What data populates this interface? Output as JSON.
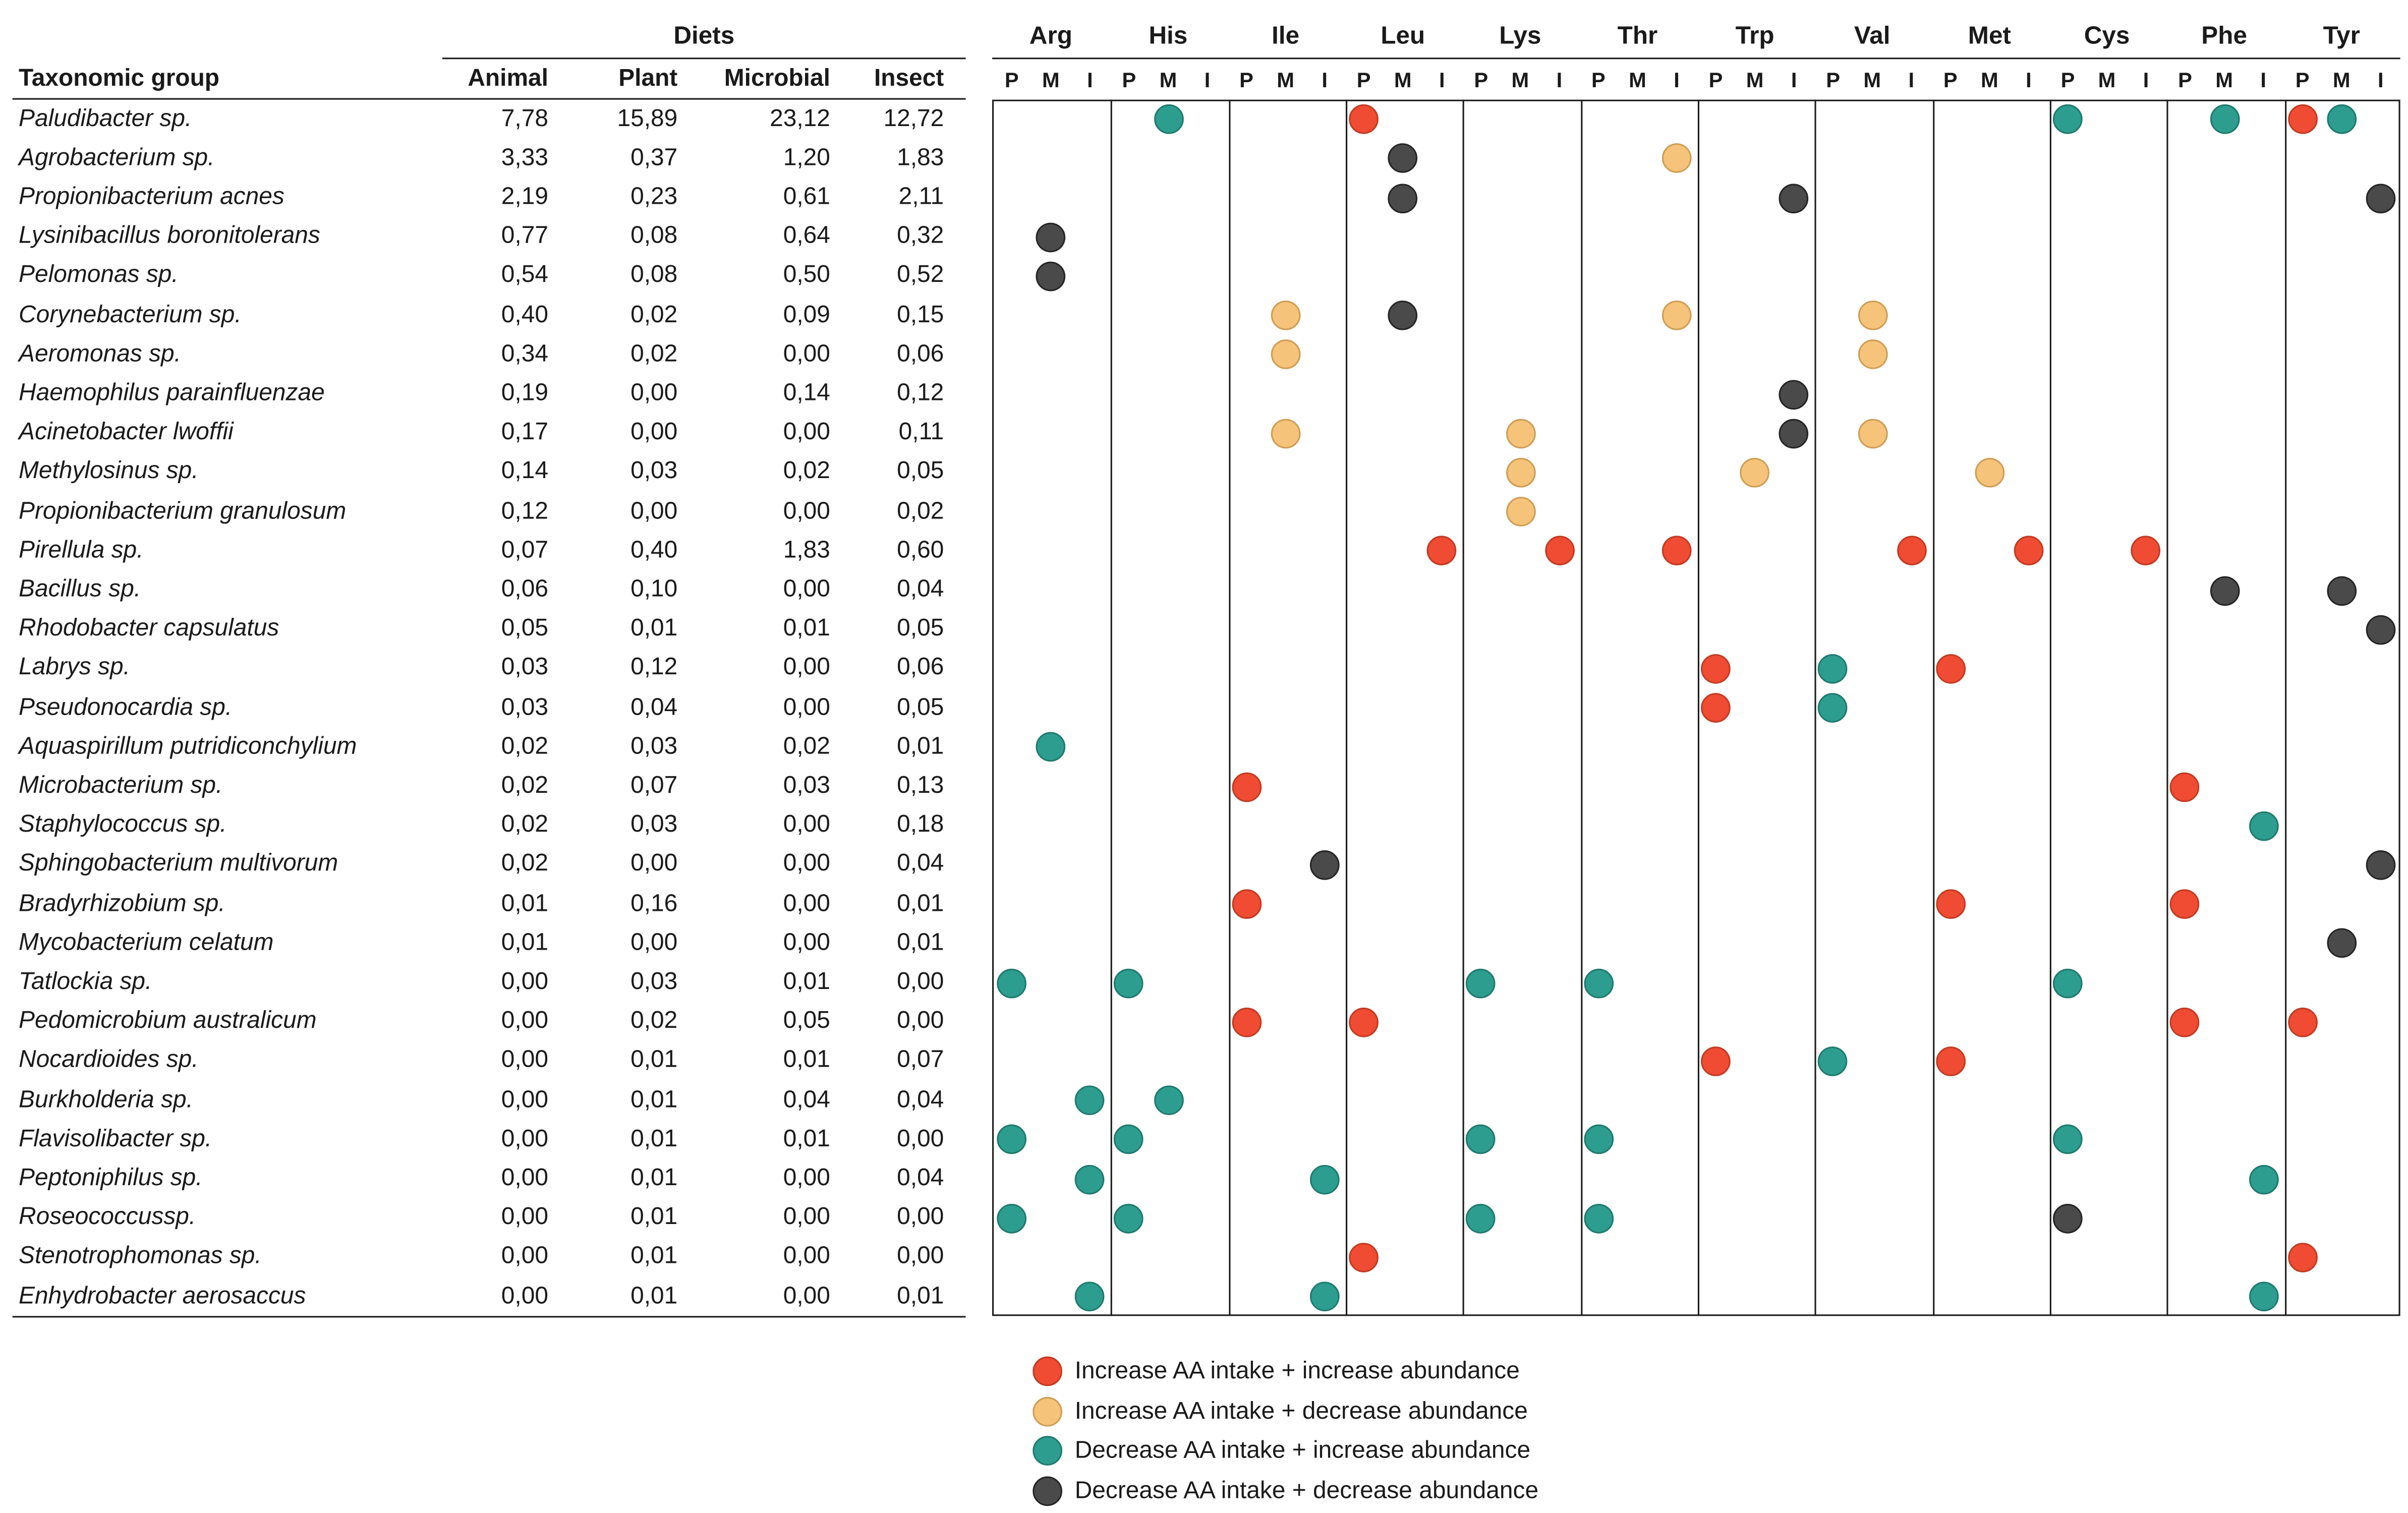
{
  "figure": {
    "legend": [
      {
        "key": "inc_inc",
        "label": "Increase AA intake + increase abundance",
        "color": "#F04C33",
        "border": "#C23A22"
      },
      {
        "key": "inc_dec",
        "label": "Increase AA intake + decrease abundance",
        "color": "#F6C37B",
        "border": "#CE9C52"
      },
      {
        "key": "dec_inc",
        "label": "Decrease AA intake + increase abundance",
        "color": "#2D9D8F",
        "border": "#1E7A6E"
      },
      {
        "key": "dec_dec",
        "label": "Decrease AA intake + decrease abundance",
        "color": "#4A4A4A",
        "border": "#252525"
      }
    ]
  },
  "chart_data": [
    {
      "type": "table",
      "title": "Diets",
      "columns": [
        "Taxonomic group",
        "Animal",
        "Plant",
        "Microbial",
        "Insect"
      ],
      "rows": [
        [
          "Paludibacter sp.",
          "7,78",
          "15,89",
          "23,12",
          "12,72"
        ],
        [
          "Agrobacterium sp.",
          "3,33",
          "0,37",
          "1,20",
          "1,83"
        ],
        [
          "Propionibacterium acnes",
          "2,19",
          "0,23",
          "0,61",
          "2,11"
        ],
        [
          "Lysinibacillus boronitolerans",
          "0,77",
          "0,08",
          "0,64",
          "0,32"
        ],
        [
          "Pelomonas sp.",
          "0,54",
          "0,08",
          "0,50",
          "0,52"
        ],
        [
          "Corynebacterium sp.",
          "0,40",
          "0,02",
          "0,09",
          "0,15"
        ],
        [
          "Aeromonas  sp.",
          "0,34",
          "0,02",
          "0,00",
          "0,06"
        ],
        [
          "Haemophilus parainfluenzae",
          "0,19",
          "0,00",
          "0,14",
          "0,12"
        ],
        [
          "Acinetobacter lwoffii",
          "0,17",
          "0,00",
          "0,00",
          "0,11"
        ],
        [
          "Methylosinus sp.",
          "0,14",
          "0,03",
          "0,02",
          "0,05"
        ],
        [
          "Propionibacterium granulosum",
          "0,12",
          "0,00",
          "0,00",
          "0,02"
        ],
        [
          "Pirellula sp.",
          "0,07",
          "0,40",
          "1,83",
          "0,60"
        ],
        [
          "Bacillus sp.",
          "0,06",
          "0,10",
          "0,00",
          "0,04"
        ],
        [
          "Rhodobacter capsulatus",
          "0,05",
          "0,01",
          "0,01",
          "0,05"
        ],
        [
          "Labrys sp.",
          "0,03",
          "0,12",
          "0,00",
          "0,06"
        ],
        [
          "Pseudonocardia sp.",
          "0,03",
          "0,04",
          "0,00",
          "0,05"
        ],
        [
          "Aquaspirillum putridiconchylium",
          "0,02",
          "0,03",
          "0,02",
          "0,01"
        ],
        [
          "Microbacterium sp.",
          "0,02",
          "0,07",
          "0,03",
          "0,13"
        ],
        [
          "Staphylococcus sp.",
          "0,02",
          "0,03",
          "0,00",
          "0,18"
        ],
        [
          "Sphingobacterium multivorum",
          "0,02",
          "0,00",
          "0,00",
          "0,04"
        ],
        [
          "Bradyrhizobium sp.",
          "0,01",
          "0,16",
          "0,00",
          "0,01"
        ],
        [
          "Mycobacterium celatum",
          "0,01",
          "0,00",
          "0,00",
          "0,01"
        ],
        [
          "Tatlockia sp.",
          "0,00",
          "0,03",
          "0,01",
          "0,00"
        ],
        [
          "Pedomicrobium australicum",
          "0,00",
          "0,02",
          "0,05",
          "0,00"
        ],
        [
          "Nocardioides sp.",
          "0,00",
          "0,01",
          "0,01",
          "0,07"
        ],
        [
          "Burkholderia sp.",
          "0,00",
          "0,01",
          "0,04",
          "0,04"
        ],
        [
          "Flavisolibacter sp.",
          "0,00",
          "0,01",
          "0,01",
          "0,00"
        ],
        [
          "Peptoniphilus sp.",
          "0,00",
          "0,01",
          "0,00",
          "0,04"
        ],
        [
          "Roseococcussp.",
          "0,00",
          "0,01",
          "0,00",
          "0,00"
        ],
        [
          "Stenotrophomonas sp.",
          "0,00",
          "0,01",
          "0,00",
          "0,00"
        ],
        [
          "Enhydrobacter aerosaccus",
          "0,00",
          "0,01",
          "0,00",
          "0,01"
        ]
      ]
    },
    {
      "type": "scatter",
      "subtype": "categorical-dot-matrix",
      "x_groups": [
        "Arg",
        "His",
        "Ile",
        "Leu",
        "Lys",
        "Thr",
        "Trp",
        "Val",
        "Met",
        "Cys",
        "Phe",
        "Tyr"
      ],
      "x_subcolumns": [
        "P",
        "M",
        "I"
      ],
      "legend_entries": [
        "Increase AA intake + increase abundance",
        "Increase AA intake + decrease abundance",
        "Decrease AA intake + increase abundance",
        "Decrease AA intake + decrease abundance"
      ],
      "points": [
        {
          "taxon": "Paludibacter sp.",
          "aa": "His",
          "diet": "M",
          "category": "dec_inc"
        },
        {
          "taxon": "Paludibacter sp.",
          "aa": "Leu",
          "diet": "P",
          "category": "inc_inc"
        },
        {
          "taxon": "Paludibacter sp.",
          "aa": "Cys",
          "diet": "P",
          "category": "dec_inc"
        },
        {
          "taxon": "Paludibacter sp.",
          "aa": "Phe",
          "diet": "M",
          "category": "dec_inc"
        },
        {
          "taxon": "Paludibacter sp.",
          "aa": "Tyr",
          "diet": "P",
          "category": "inc_inc"
        },
        {
          "taxon": "Paludibacter sp.",
          "aa": "Tyr",
          "diet": "M",
          "category": "dec_inc"
        },
        {
          "taxon": "Agrobacterium sp.",
          "aa": "Leu",
          "diet": "M",
          "category": "dec_dec"
        },
        {
          "taxon": "Agrobacterium sp.",
          "aa": "Thr",
          "diet": "I",
          "category": "inc_dec"
        },
        {
          "taxon": "Propionibacterium acnes",
          "aa": "Leu",
          "diet": "M",
          "category": "dec_dec"
        },
        {
          "taxon": "Propionibacterium acnes",
          "aa": "Trp",
          "diet": "I",
          "category": "dec_dec"
        },
        {
          "taxon": "Propionibacterium acnes",
          "aa": "Tyr",
          "diet": "I",
          "category": "dec_dec"
        },
        {
          "taxon": "Lysinibacillus boronitolerans",
          "aa": "Arg",
          "diet": "M",
          "category": "dec_dec"
        },
        {
          "taxon": "Pelomonas sp.",
          "aa": "Arg",
          "diet": "M",
          "category": "dec_dec"
        },
        {
          "taxon": "Corynebacterium sp.",
          "aa": "Ile",
          "diet": "M",
          "category": "inc_dec"
        },
        {
          "taxon": "Corynebacterium sp.",
          "aa": "Leu",
          "diet": "M",
          "category": "dec_dec"
        },
        {
          "taxon": "Corynebacterium sp.",
          "aa": "Thr",
          "diet": "I",
          "category": "inc_dec"
        },
        {
          "taxon": "Corynebacterium sp.",
          "aa": "Val",
          "diet": "M",
          "category": "inc_dec"
        },
        {
          "taxon": "Aeromonas  sp.",
          "aa": "Ile",
          "diet": "M",
          "category": "inc_dec"
        },
        {
          "taxon": "Aeromonas  sp.",
          "aa": "Val",
          "diet": "M",
          "category": "inc_dec"
        },
        {
          "taxon": "Haemophilus parainfluenzae",
          "aa": "Trp",
          "diet": "I",
          "category": "dec_dec"
        },
        {
          "taxon": "Acinetobacter lwoffii",
          "aa": "Ile",
          "diet": "M",
          "category": "inc_dec"
        },
        {
          "taxon": "Acinetobacter lwoffii",
          "aa": "Lys",
          "diet": "M",
          "category": "inc_dec"
        },
        {
          "taxon": "Acinetobacter lwoffii",
          "aa": "Trp",
          "diet": "I",
          "category": "dec_dec"
        },
        {
          "taxon": "Acinetobacter lwoffii",
          "aa": "Val",
          "diet": "M",
          "category": "inc_dec"
        },
        {
          "taxon": "Methylosinus sp.",
          "aa": "Lys",
          "diet": "M",
          "category": "inc_dec"
        },
        {
          "taxon": "Methylosinus sp.",
          "aa": "Trp",
          "diet": "M",
          "category": "inc_dec"
        },
        {
          "taxon": "Methylosinus sp.",
          "aa": "Met",
          "diet": "M",
          "category": "inc_dec"
        },
        {
          "taxon": "Propionibacterium granulosum",
          "aa": "Lys",
          "diet": "M",
          "category": "inc_dec"
        },
        {
          "taxon": "Pirellula sp.",
          "aa": "Leu",
          "diet": "I",
          "category": "inc_inc"
        },
        {
          "taxon": "Pirellula sp.",
          "aa": "Lys",
          "diet": "I",
          "category": "inc_inc"
        },
        {
          "taxon": "Pirellula sp.",
          "aa": "Thr",
          "diet": "I",
          "category": "inc_inc"
        },
        {
          "taxon": "Pirellula sp.",
          "aa": "Val",
          "diet": "I",
          "category": "inc_inc"
        },
        {
          "taxon": "Pirellula sp.",
          "aa": "Met",
          "diet": "I",
          "category": "inc_inc"
        },
        {
          "taxon": "Pirellula sp.",
          "aa": "Cys",
          "diet": "I",
          "category": "inc_inc"
        },
        {
          "taxon": "Bacillus sp.",
          "aa": "Phe",
          "diet": "M",
          "category": "dec_dec"
        },
        {
          "taxon": "Bacillus sp.",
          "aa": "Tyr",
          "diet": "M",
          "category": "dec_dec"
        },
        {
          "taxon": "Rhodobacter capsulatus",
          "aa": "Tyr",
          "diet": "I",
          "category": "dec_dec"
        },
        {
          "taxon": "Labrys sp.",
          "aa": "Trp",
          "diet": "P",
          "category": "inc_inc"
        },
        {
          "taxon": "Labrys sp.",
          "aa": "Val",
          "diet": "P",
          "category": "dec_inc"
        },
        {
          "taxon": "Labrys sp.",
          "aa": "Met",
          "diet": "P",
          "category": "inc_inc"
        },
        {
          "taxon": "Pseudonocardia sp.",
          "aa": "Trp",
          "diet": "P",
          "category": "inc_inc"
        },
        {
          "taxon": "Pseudonocardia sp.",
          "aa": "Val",
          "diet": "P",
          "category": "dec_inc"
        },
        {
          "taxon": "Aquaspirillum putridiconchylium",
          "aa": "Arg",
          "diet": "M",
          "category": "dec_inc"
        },
        {
          "taxon": "Microbacterium sp.",
          "aa": "Ile",
          "diet": "P",
          "category": "inc_inc"
        },
        {
          "taxon": "Microbacterium sp.",
          "aa": "Phe",
          "diet": "P",
          "category": "inc_inc"
        },
        {
          "taxon": "Staphylococcus sp.",
          "aa": "Phe",
          "diet": "I",
          "category": "dec_inc"
        },
        {
          "taxon": "Sphingobacterium multivorum",
          "aa": "Ile",
          "diet": "I",
          "category": "dec_dec"
        },
        {
          "taxon": "Sphingobacterium multivorum",
          "aa": "Tyr",
          "diet": "I",
          "category": "dec_dec"
        },
        {
          "taxon": "Bradyrhizobium sp.",
          "aa": "Ile",
          "diet": "P",
          "category": "inc_inc"
        },
        {
          "taxon": "Bradyrhizobium sp.",
          "aa": "Met",
          "diet": "P",
          "category": "inc_inc"
        },
        {
          "taxon": "Bradyrhizobium sp.",
          "aa": "Phe",
          "diet": "P",
          "category": "inc_inc"
        },
        {
          "taxon": "Mycobacterium celatum",
          "aa": "Tyr",
          "diet": "M",
          "category": "dec_dec"
        },
        {
          "taxon": "Tatlockia sp.",
          "aa": "Arg",
          "diet": "P",
          "category": "dec_inc"
        },
        {
          "taxon": "Tatlockia sp.",
          "aa": "His",
          "diet": "P",
          "category": "dec_inc"
        },
        {
          "taxon": "Tatlockia sp.",
          "aa": "Lys",
          "diet": "P",
          "category": "dec_inc"
        },
        {
          "taxon": "Tatlockia sp.",
          "aa": "Thr",
          "diet": "P",
          "category": "dec_inc"
        },
        {
          "taxon": "Tatlockia sp.",
          "aa": "Cys",
          "diet": "P",
          "category": "dec_inc"
        },
        {
          "taxon": "Pedomicrobium australicum",
          "aa": "Ile",
          "diet": "P",
          "category": "inc_inc"
        },
        {
          "taxon": "Pedomicrobium australicum",
          "aa": "Leu",
          "diet": "P",
          "category": "inc_inc"
        },
        {
          "taxon": "Pedomicrobium australicum",
          "aa": "Phe",
          "diet": "P",
          "category": "inc_inc"
        },
        {
          "taxon": "Pedomicrobium australicum",
          "aa": "Tyr",
          "diet": "P",
          "category": "inc_inc"
        },
        {
          "taxon": "Nocardioides sp.",
          "aa": "Trp",
          "diet": "P",
          "category": "inc_inc"
        },
        {
          "taxon": "Nocardioides sp.",
          "aa": "Val",
          "diet": "P",
          "category": "dec_inc"
        },
        {
          "taxon": "Nocardioides sp.",
          "aa": "Met",
          "diet": "P",
          "category": "inc_inc"
        },
        {
          "taxon": "Burkholderia sp.",
          "aa": "Arg",
          "diet": "I",
          "category": "dec_inc"
        },
        {
          "taxon": "Burkholderia sp.",
          "aa": "His",
          "diet": "M",
          "category": "dec_inc"
        },
        {
          "taxon": "Flavisolibacter sp.",
          "aa": "Arg",
          "diet": "P",
          "category": "dec_inc"
        },
        {
          "taxon": "Flavisolibacter sp.",
          "aa": "His",
          "diet": "P",
          "category": "dec_inc"
        },
        {
          "taxon": "Flavisolibacter sp.",
          "aa": "Lys",
          "diet": "P",
          "category": "dec_inc"
        },
        {
          "taxon": "Flavisolibacter sp.",
          "aa": "Thr",
          "diet": "P",
          "category": "dec_inc"
        },
        {
          "taxon": "Flavisolibacter sp.",
          "aa": "Cys",
          "diet": "P",
          "category": "dec_inc"
        },
        {
          "taxon": "Peptoniphilus sp.",
          "aa": "Arg",
          "diet": "I",
          "category": "dec_inc"
        },
        {
          "taxon": "Peptoniphilus sp.",
          "aa": "Ile",
          "diet": "I",
          "category": "dec_inc"
        },
        {
          "taxon": "Peptoniphilus sp.",
          "aa": "Phe",
          "diet": "I",
          "category": "dec_inc"
        },
        {
          "taxon": "Roseococcussp.",
          "aa": "Arg",
          "diet": "P",
          "category": "dec_inc"
        },
        {
          "taxon": "Roseococcussp.",
          "aa": "His",
          "diet": "P",
          "category": "dec_inc"
        },
        {
          "taxon": "Roseococcussp.",
          "aa": "Lys",
          "diet": "P",
          "category": "dec_inc"
        },
        {
          "taxon": "Roseococcussp.",
          "aa": "Thr",
          "diet": "P",
          "category": "dec_inc"
        },
        {
          "taxon": "Roseococcussp.",
          "aa": "Cys",
          "diet": "P",
          "category": "dec_dec"
        },
        {
          "taxon": "Stenotrophomonas sp.",
          "aa": "Leu",
          "diet": "P",
          "category": "inc_inc"
        },
        {
          "taxon": "Stenotrophomonas sp.",
          "aa": "Tyr",
          "diet": "P",
          "category": "inc_inc"
        },
        {
          "taxon": "Enhydrobacter aerosaccus",
          "aa": "Arg",
          "diet": "I",
          "category": "dec_inc"
        },
        {
          "taxon": "Enhydrobacter aerosaccus",
          "aa": "Ile",
          "diet": "I",
          "category": "dec_inc"
        },
        {
          "taxon": "Enhydrobacter aerosaccus",
          "aa": "Phe",
          "diet": "I",
          "category": "dec_inc"
        }
      ]
    }
  ]
}
